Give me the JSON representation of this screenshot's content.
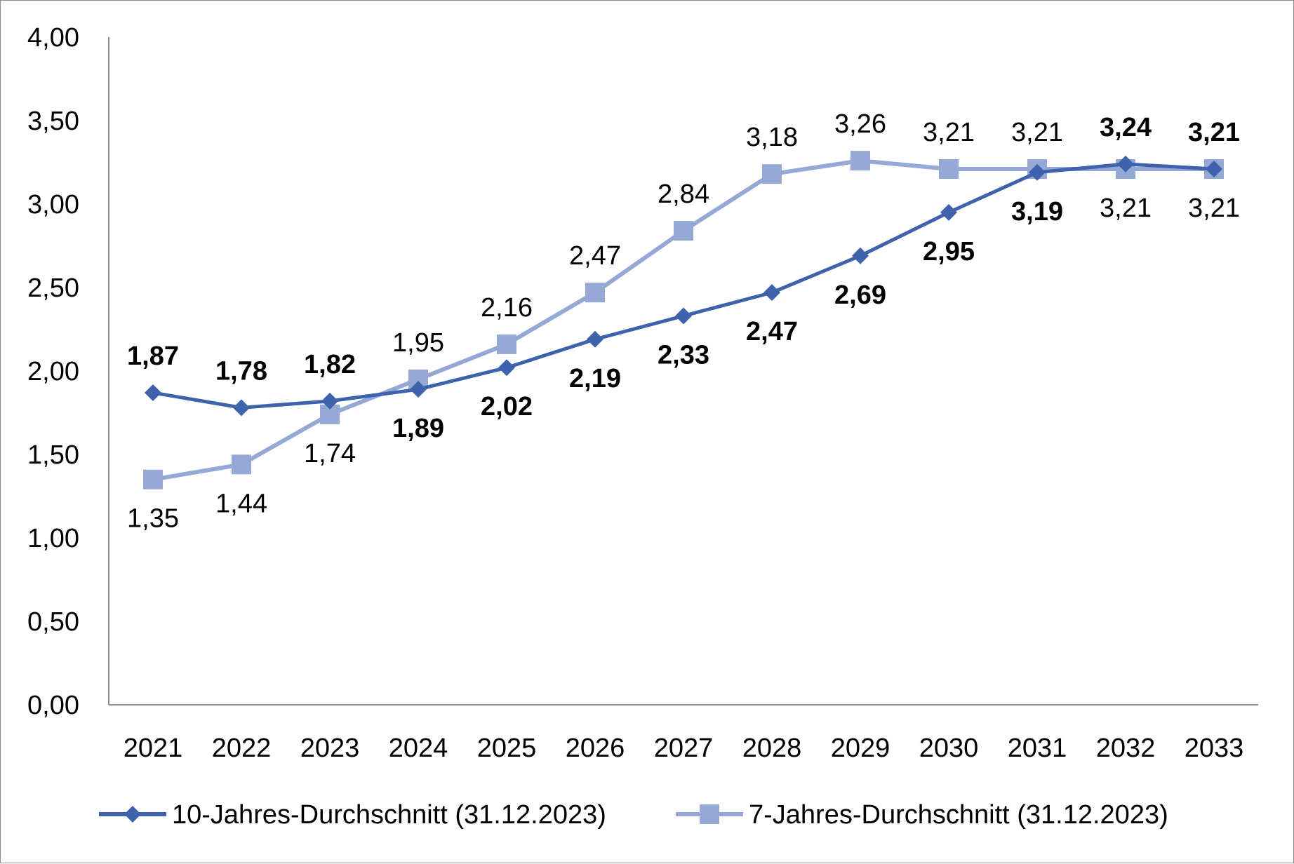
{
  "chart_data": {
    "type": "line",
    "title": "",
    "xlabel": "",
    "ylabel": "",
    "ylim": [
      0,
      4
    ],
    "yticks": [
      "0,00",
      "0,50",
      "1,00",
      "1,50",
      "2,00",
      "2,50",
      "3,00",
      "3,50",
      "4,00"
    ],
    "categories": [
      "2021",
      "2022",
      "2023",
      "2024",
      "2025",
      "2026",
      "2027",
      "2028",
      "2029",
      "2030",
      "2031",
      "2032",
      "2033"
    ],
    "grid": false,
    "legend_position": "bottom",
    "series": [
      {
        "name": "10-Jahres-Durchschnitt (31.12.2023)",
        "color": "#3e63ac",
        "marker": "diamond",
        "values": [
          1.87,
          1.78,
          1.82,
          1.89,
          2.02,
          2.19,
          2.33,
          2.47,
          2.69,
          2.95,
          3.19,
          3.24,
          3.21
        ],
        "labels": [
          "1,87",
          "1,78",
          "1,82",
          "1,89",
          "2,02",
          "2,19",
          "2,33",
          "2,47",
          "2,69",
          "2,95",
          "3,19",
          "3,24",
          "3,21"
        ],
        "label_positions": [
          "above",
          "above",
          "above",
          "below",
          "below",
          "below",
          "below",
          "below",
          "below",
          "below",
          "below",
          "above",
          "above"
        ],
        "label_weight": "bold"
      },
      {
        "name": "7-Jahres-Durchschnitt (31.12.2023)",
        "color": "#95a8d6",
        "marker": "square",
        "values": [
          1.35,
          1.44,
          1.74,
          1.95,
          2.16,
          2.47,
          2.84,
          3.18,
          3.26,
          3.21,
          3.21,
          3.21,
          3.21
        ],
        "labels": [
          "1,35",
          "1,44",
          "1,74",
          "1,95",
          "2,16",
          "2,47",
          "2,84",
          "3,18",
          "3,26",
          "3,21",
          "3,21",
          "3,21",
          "3,21"
        ],
        "label_positions": [
          "below",
          "below",
          "below",
          "above",
          "above",
          "above",
          "above",
          "above",
          "above",
          "above",
          "above",
          "below",
          "below"
        ],
        "label_weight": "normal"
      }
    ]
  }
}
